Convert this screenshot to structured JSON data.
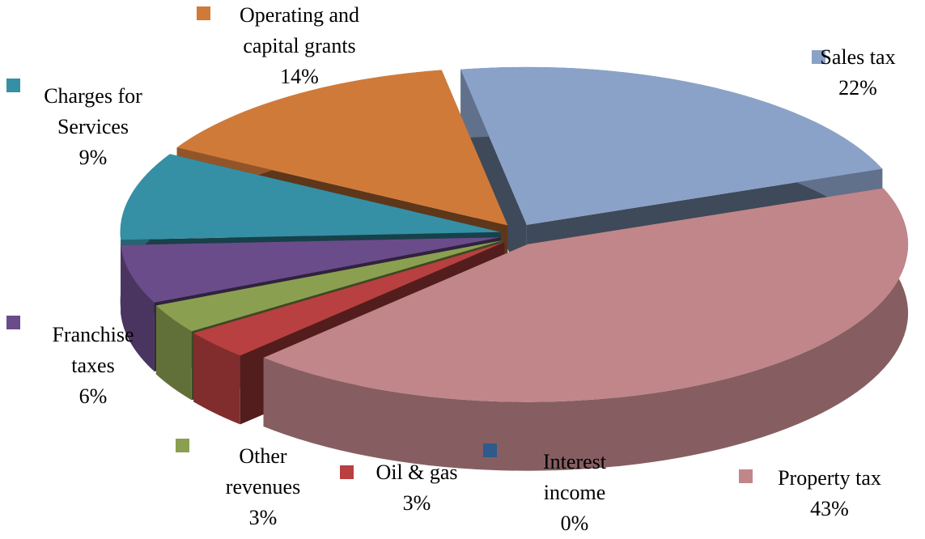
{
  "chart_data": {
    "type": "pie3d",
    "categories": [
      "Sales tax",
      "Property tax",
      "Interest income",
      "Oil & gas",
      "Other revenues",
      "Franchise taxes",
      "Charges for Services",
      "Operating and capital grants"
    ],
    "values": [
      22,
      43,
      0,
      3,
      3,
      6,
      9,
      14
    ],
    "value_labels": [
      "22%",
      "43%",
      "0%",
      "3%",
      "3%",
      "6%",
      "9%",
      "14%"
    ],
    "colors": [
      "#8aa2c8",
      "#c0868a",
      "#2e5a8c",
      "#b84040",
      "#8aa050",
      "#6a4c8a",
      "#3590a5",
      "#d07a3a"
    ]
  }
}
